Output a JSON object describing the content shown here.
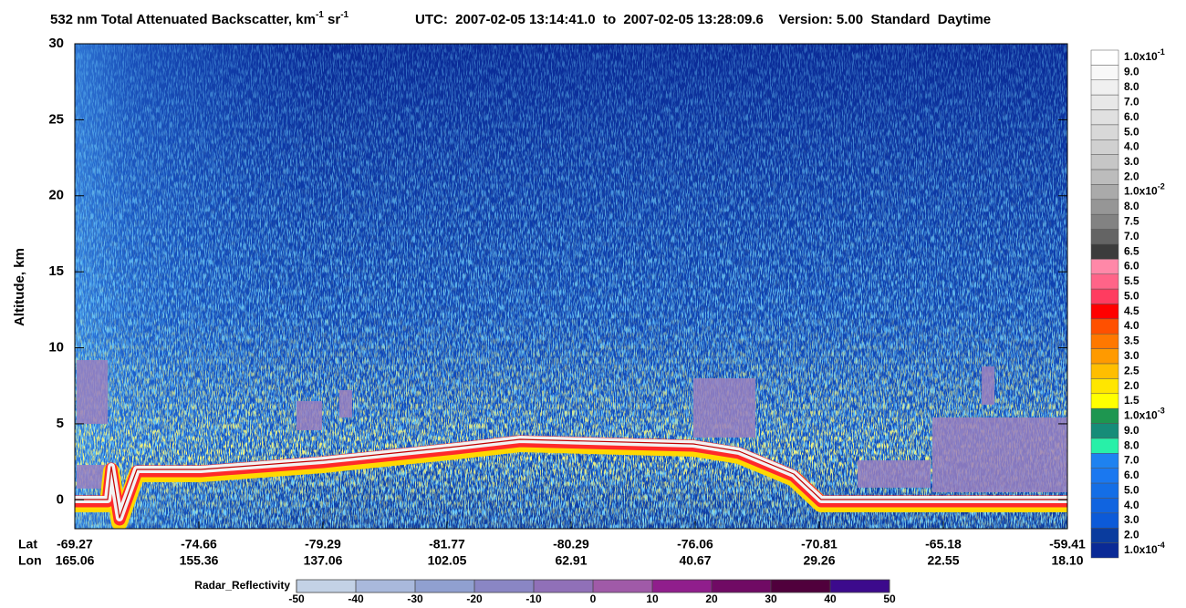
{
  "chart_data": {
    "type": "curtain",
    "title": [
      "532 nm Total Attenuated Backscatter, km",
      "-1",
      " sr",
      "-1"
    ],
    "subtitle": "UTC:  2007-02-05 13:14:41.0  to  2007-02-05 13:28:09.6    Version: 5.00  Standard  Daytime",
    "ylabel": "Altitude, km",
    "ylim": [
      -1.9,
      30
    ],
    "yticks": [
      0,
      5,
      10,
      15,
      20,
      25,
      30
    ],
    "x_rows": [
      {
        "name": "Lat",
        "labels": [
          "-69.27",
          "-74.66",
          "-79.29",
          "-81.77",
          "-80.29",
          "-76.06",
          "-70.81",
          "-65.18",
          "-59.41"
        ]
      },
      {
        "name": "Lon",
        "labels": [
          "165.06",
          "155.36",
          "137.06",
          "102.05",
          "62.91",
          "40.67",
          "29.26",
          "22.55",
          "18.10"
        ]
      }
    ],
    "colorbar": {
      "labels": [
        {
          "base": "1.0x10",
          "exp": "-1"
        },
        "9.0",
        "8.0",
        "7.0",
        "6.0",
        "5.0",
        "4.0",
        "3.0",
        "2.0",
        {
          "base": "1.0x10",
          "exp": "-2"
        },
        "8.0",
        "7.5",
        "7.0",
        "6.5",
        "6.0",
        "5.5",
        "5.0",
        "4.5",
        "4.0",
        "3.5",
        "3.0",
        "2.5",
        "2.0",
        "1.5",
        {
          "base": "1.0x10",
          "exp": "-3"
        },
        "9.0",
        "8.0",
        "7.0",
        "6.0",
        "5.0",
        "4.0",
        "3.0",
        "2.0",
        {
          "base": "1.0x10",
          "exp": "-4"
        }
      ],
      "colors": [
        "#ffffff",
        "#f8f8f8",
        "#f0f0f0",
        "#e8e8e8",
        "#e0e0e0",
        "#d8d8d8",
        "#d0d0d0",
        "#c6c6c6",
        "#bcbcbc",
        "#aaaaaa",
        "#969696",
        "#828282",
        "#646464",
        "#3c3c3c",
        "#ff88a8",
        "#ff6488",
        "#ff3c60",
        "#ff0000",
        "#ff5000",
        "#ff7800",
        "#ff9a00",
        "#ffbe00",
        "#ffe600",
        "#ffff00",
        "#1e9650",
        "#168c78",
        "#28f0a8",
        "#1e82f0",
        "#1a78f0",
        "#146ee6",
        "#1064e0",
        "#0c5ad8",
        "#0a3c9e",
        "#0a2a96"
      ]
    },
    "radar_colorbar": {
      "label": "Radar_Reflectivity",
      "ticks": [
        -50,
        -40,
        -30,
        -20,
        -10,
        0,
        10,
        20,
        30,
        40,
        50
      ],
      "colors": [
        "#c3d2e6",
        "#a9b9dc",
        "#90a0d0",
        "#8a86c4",
        "#9070b8",
        "#a05aa8",
        "#901e8c",
        "#700a64",
        "#50003c",
        "#3c0a8c"
      ]
    }
  }
}
